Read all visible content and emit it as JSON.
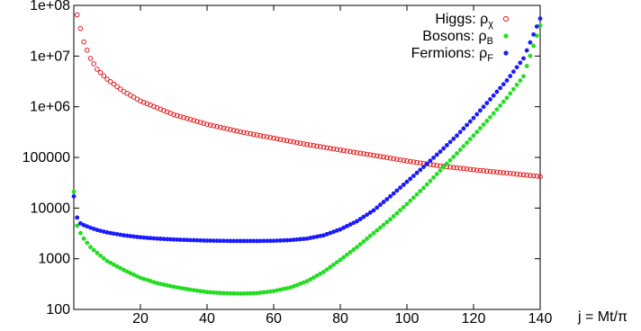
{
  "chart_data": {
    "type": "scatter",
    "title": "",
    "xlabel": "j = Mt/π",
    "ylabel": "",
    "xlim": [
      0,
      140
    ],
    "ylim": [
      100,
      100000000
    ],
    "yscale": "log",
    "grid": false,
    "legend_placement": "top-right",
    "xticks": [
      "20",
      "40",
      "60",
      "80",
      "100",
      "120",
      "140"
    ],
    "xtick_values": [
      20,
      40,
      60,
      80,
      100,
      120,
      140
    ],
    "yticks": [
      "100",
      "1000",
      "10000",
      "100000",
      "1e+06",
      "1e+07",
      "1e+08"
    ],
    "ytick_values": [
      100,
      1000,
      10000,
      100000,
      1000000,
      10000000,
      100000000
    ],
    "series": [
      {
        "name": "Higgs: ρχ",
        "label_main": "Higgs: ρ",
        "label_sub": "χ",
        "color": "#e41a1c",
        "marker": "open-circle",
        "x": [
          1,
          2,
          3,
          5,
          7,
          10,
          15,
          20,
          30,
          40,
          50,
          60,
          70,
          80,
          90,
          100,
          110,
          120,
          130,
          140
        ],
        "y": [
          65000000,
          35000000,
          19000000,
          9000000,
          5500000,
          3500000,
          2000000,
          1300000,
          700000,
          450000,
          320000,
          240000,
          180000,
          140000,
          110000,
          85000,
          68000,
          57000,
          49000,
          42000
        ]
      },
      {
        "name": "Bosons: ρB",
        "label_main": "Bosons: ρ",
        "label_sub": "B",
        "color": "#22dd22",
        "marker": "filled-circle",
        "x": [
          0,
          1,
          2,
          3,
          5,
          7,
          10,
          15,
          20,
          25,
          30,
          35,
          40,
          45,
          50,
          55,
          60,
          65,
          70,
          75,
          80,
          85,
          90,
          95,
          100,
          105,
          110,
          115,
          120,
          125,
          130,
          135,
          140
        ],
        "y": [
          21000,
          4500,
          3200,
          2500,
          1700,
          1300,
          900,
          600,
          420,
          330,
          280,
          245,
          220,
          210,
          205,
          210,
          230,
          270,
          360,
          550,
          950,
          1700,
          3200,
          6000,
          12000,
          25000,
          55000,
          120000,
          270000,
          620000,
          1500000,
          4000000,
          40000000
        ]
      },
      {
        "name": "Fermions: ρF",
        "label_main": "Fermions: ρ",
        "label_sub": "F",
        "color": "#1a1aff",
        "marker": "filled-circle",
        "x": [
          0,
          1,
          2,
          3,
          5,
          7,
          10,
          15,
          20,
          25,
          30,
          35,
          40,
          45,
          50,
          55,
          60,
          65,
          70,
          75,
          80,
          85,
          90,
          95,
          100,
          105,
          110,
          115,
          120,
          125,
          130,
          135,
          140
        ],
        "y": [
          17000,
          6500,
          5000,
          4600,
          4100,
          3700,
          3300,
          2900,
          2650,
          2500,
          2400,
          2330,
          2280,
          2250,
          2240,
          2240,
          2260,
          2330,
          2500,
          2900,
          3800,
          5500,
          9000,
          17000,
          33000,
          65000,
          130000,
          270000,
          600000,
          1400000,
          3300000,
          9000000,
          55000000
        ]
      }
    ]
  }
}
